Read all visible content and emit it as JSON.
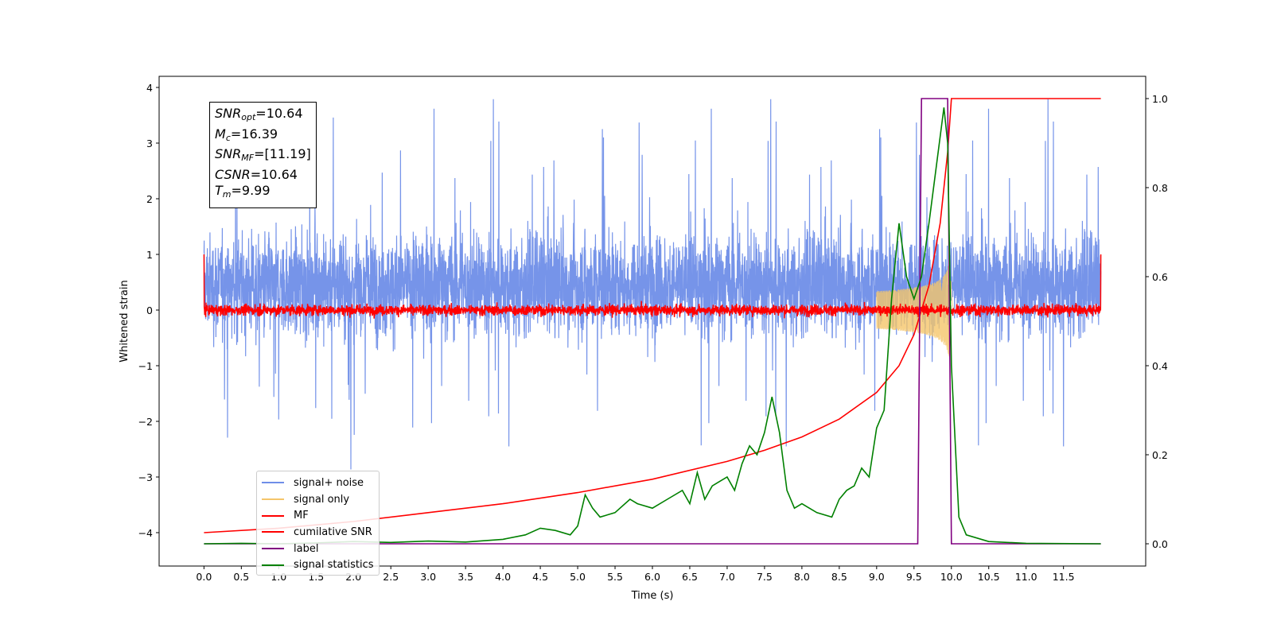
{
  "chart_data": {
    "type": "line",
    "xlabel": "Time (s)",
    "ylabel": "Whitened strain",
    "xlim": [
      -0.6,
      12.6
    ],
    "ylim_left": [
      -4.6,
      4.2
    ],
    "ylim_right": [
      -0.05,
      1.05
    ],
    "x_ticks": [
      "0.0",
      "0.5",
      "1.0",
      "1.5",
      "2.0",
      "2.5",
      "3.0",
      "3.5",
      "4.0",
      "4.5",
      "5.0",
      "5.5",
      "6.0",
      "6.5",
      "7.0",
      "7.5",
      "8.0",
      "8.5",
      "9.0",
      "9.5",
      "10.0",
      "10.5",
      "11.0",
      "11.5"
    ],
    "y_ticks_left": [
      "4",
      "3",
      "2",
      "1",
      "0",
      "−1",
      "−2",
      "−3",
      "−4"
    ],
    "y_ticks_right": [
      "1.0",
      "0.8",
      "0.6",
      "0.4",
      "0.2",
      "0.0"
    ],
    "annotation": {
      "snr_opt": {
        "sym": "SNR",
        "sub": "opt",
        "value": "=10.64"
      },
      "mc": {
        "sym": "M",
        "sub": "c",
        "value": "=16.39"
      },
      "snr_mf": {
        "sym": "SNR",
        "sub": "MF",
        "value": "=[11.19]"
      },
      "csnr": {
        "sym": "CSNR",
        "value": "=10.64"
      },
      "tm": {
        "sym": "T",
        "sub": "m",
        "value": "=9.99"
      }
    },
    "series": [
      {
        "name": "signal+ noise",
        "color": "#6f8ee8",
        "axis": "left",
        "description_values": {
          "x_range": [
            0.0,
            12.0
          ],
          "typical_range": [
            -1.7,
            2.6
          ],
          "extremes": [
            -4.2,
            3.8
          ]
        }
      },
      {
        "name": "signal only",
        "color": "#f5c56a",
        "axis": "left",
        "description_values": {
          "chirp_start": 9.0,
          "merger": 9.99,
          "peak_amplitude": 0.9
        }
      },
      {
        "name": "MF",
        "color": "#ff0000",
        "axis": "left",
        "description_values": {
          "baseline": 0.0,
          "noise_amplitude": 0.15,
          "edge_value": 1.0
        }
      },
      {
        "name": "cumilative SNR",
        "color": "#ff0000",
        "axis": "right",
        "x": [
          0.0,
          1.0,
          2.0,
          3.0,
          4.0,
          5.0,
          6.0,
          7.0,
          7.5,
          8.0,
          8.5,
          9.0,
          9.3,
          9.5,
          9.7,
          9.85,
          9.95,
          10.0,
          12.0
        ],
        "values": [
          0.025,
          0.035,
          0.05,
          0.07,
          0.09,
          0.115,
          0.145,
          0.185,
          0.21,
          0.24,
          0.28,
          0.34,
          0.4,
          0.47,
          0.58,
          0.72,
          0.88,
          1.0,
          1.0
        ]
      },
      {
        "name": "label",
        "color": "#800080",
        "axis": "right",
        "x": [
          0.0,
          9.55,
          9.6,
          9.95,
          10.0,
          12.0
        ],
        "values": [
          0.0,
          0.0,
          1.0,
          1.0,
          0.0,
          0.0
        ]
      },
      {
        "name": "signal statistics",
        "color": "#008000",
        "axis": "right",
        "x": [
          0.0,
          0.5,
          1.0,
          1.5,
          2.0,
          2.5,
          3.0,
          3.5,
          4.0,
          4.3,
          4.5,
          4.7,
          4.9,
          5.0,
          5.1,
          5.2,
          5.3,
          5.5,
          5.7,
          5.8,
          6.0,
          6.2,
          6.4,
          6.5,
          6.6,
          6.7,
          6.8,
          6.9,
          7.0,
          7.1,
          7.2,
          7.3,
          7.4,
          7.5,
          7.6,
          7.7,
          7.8,
          7.9,
          8.0,
          8.2,
          8.4,
          8.5,
          8.6,
          8.7,
          8.8,
          8.9,
          9.0,
          9.1,
          9.2,
          9.3,
          9.4,
          9.5,
          9.6,
          9.7,
          9.8,
          9.9,
          9.95,
          10.0,
          10.1,
          10.2,
          10.5,
          11.0,
          12.0
        ],
        "values": [
          0.0,
          0.001,
          0.0,
          0.002,
          0.005,
          0.003,
          0.006,
          0.004,
          0.01,
          0.02,
          0.035,
          0.03,
          0.02,
          0.04,
          0.11,
          0.08,
          0.06,
          0.07,
          0.1,
          0.09,
          0.08,
          0.1,
          0.12,
          0.09,
          0.16,
          0.1,
          0.13,
          0.14,
          0.15,
          0.12,
          0.18,
          0.22,
          0.2,
          0.25,
          0.33,
          0.25,
          0.12,
          0.08,
          0.09,
          0.07,
          0.06,
          0.1,
          0.12,
          0.13,
          0.17,
          0.15,
          0.26,
          0.3,
          0.55,
          0.72,
          0.6,
          0.55,
          0.6,
          0.72,
          0.85,
          0.98,
          0.9,
          0.4,
          0.06,
          0.02,
          0.005,
          0.001,
          0.0
        ]
      }
    ],
    "grid": false,
    "legend_position": "lower-left"
  }
}
